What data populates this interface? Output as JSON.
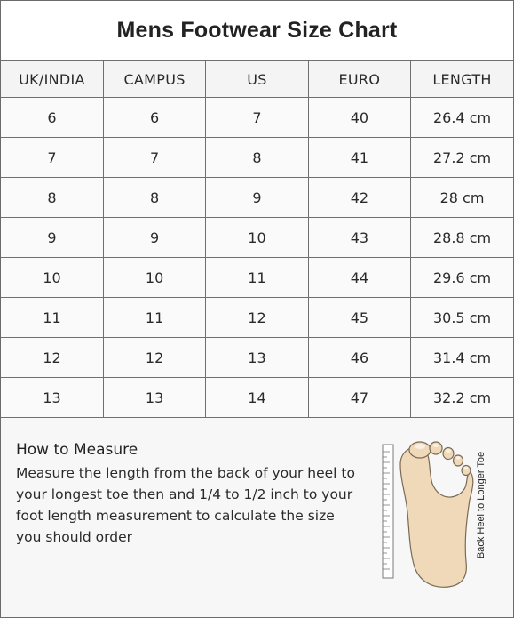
{
  "title": "Mens Footwear Size Chart",
  "table": {
    "headers": [
      "UK/INDIA",
      "CAMPUS",
      "US",
      "EURO",
      "LENGTH"
    ],
    "rows": [
      [
        "6",
        "6",
        "7",
        "40",
        "26.4 cm"
      ],
      [
        "7",
        "7",
        "8",
        "41",
        "27.2 cm"
      ],
      [
        "8",
        "8",
        "9",
        "42",
        "28 cm"
      ],
      [
        "9",
        "9",
        "10",
        "43",
        "28.8 cm"
      ],
      [
        "10",
        "10",
        "11",
        "44",
        "29.6 cm"
      ],
      [
        "11",
        "11",
        "12",
        "45",
        "30.5 cm"
      ],
      [
        "12",
        "12",
        "13",
        "46",
        "31.4 cm"
      ],
      [
        "13",
        "13",
        "14",
        "47",
        "32.2 cm"
      ]
    ]
  },
  "measure": {
    "heading": "How to Measure",
    "text": "Measure the length from the back of your heel to your longest toe then and 1/4 to 1/2 inch to your foot length measurement to calculate the size you should order",
    "diagram_label": "Back Heel to Longer Toe",
    "foot_icon": "foot-with-ruler-icon"
  }
}
